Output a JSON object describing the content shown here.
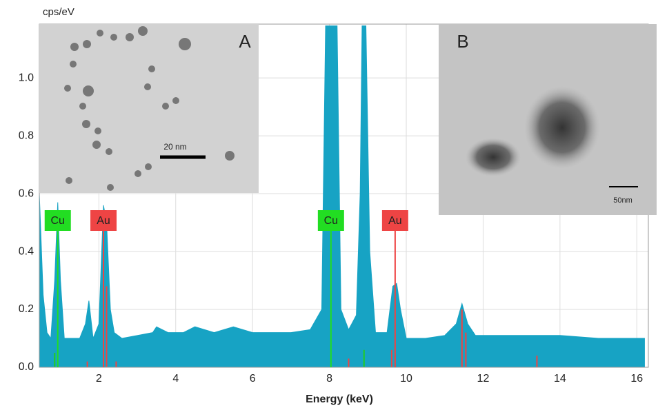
{
  "chart_data": {
    "type": "area",
    "y_label": "cps/eV",
    "x_label": "Energy  (keV)",
    "x": [
      0.45,
      0.55,
      0.65,
      0.75,
      0.85,
      0.93,
      1.0,
      1.1,
      1.3,
      1.5,
      1.65,
      1.74,
      1.85,
      2.0,
      2.12,
      2.2,
      2.3,
      2.4,
      2.6,
      3.0,
      3.4,
      3.5,
      3.8,
      4.2,
      4.5,
      5.0,
      5.5,
      6.0,
      6.5,
      7.0,
      7.5,
      7.8,
      7.9,
      8.04,
      8.2,
      8.3,
      8.5,
      8.7,
      8.8,
      8.85,
      8.95,
      9.05,
      9.2,
      9.5,
      9.65,
      9.75,
      9.85,
      10.0,
      10.5,
      11.0,
      11.3,
      11.45,
      11.6,
      11.8,
      12.5,
      13.0,
      13.5,
      14.0,
      15.0,
      16.2
    ],
    "series": [
      {
        "color": "#17a3c4",
        "values": [
          0.6,
          0.25,
          0.12,
          0.1,
          0.3,
          0.57,
          0.3,
          0.1,
          0.1,
          0.1,
          0.15,
          0.23,
          0.1,
          0.15,
          0.56,
          0.5,
          0.2,
          0.12,
          0.1,
          0.11,
          0.12,
          0.14,
          0.12,
          0.12,
          0.14,
          0.12,
          0.14,
          0.12,
          0.12,
          0.12,
          0.13,
          0.2,
          1.18,
          1.18,
          1.18,
          0.2,
          0.13,
          0.18,
          0.6,
          1.18,
          1.18,
          0.4,
          0.12,
          0.12,
          0.28,
          0.29,
          0.2,
          0.1,
          0.1,
          0.11,
          0.15,
          0.22,
          0.15,
          0.11,
          0.11,
          0.11,
          0.11,
          0.11,
          0.1,
          0.1
        ]
      }
    ],
    "reference_lines": [
      {
        "x": 0.85,
        "value": 0.05,
        "color": "#22cc22"
      },
      {
        "x": 1.7,
        "value": 0.02,
        "color": "#ee4444"
      },
      {
        "x": 2.2,
        "value": 0.28,
        "color": "#ee4444"
      },
      {
        "x": 2.45,
        "value": 0.02,
        "color": "#ee4444"
      },
      {
        "x": 8.5,
        "value": 0.03,
        "color": "#ee4444"
      },
      {
        "x": 8.9,
        "value": 0.06,
        "color": "#22cc22"
      },
      {
        "x": 9.62,
        "value": 0.06,
        "color": "#ee4444"
      },
      {
        "x": 11.45,
        "value": 0.2,
        "color": "#ee4444"
      },
      {
        "x": 11.55,
        "value": 0.12,
        "color": "#ee4444"
      },
      {
        "x": 13.4,
        "value": 0.04,
        "color": "#ee4444"
      }
    ],
    "annotations": [
      {
        "text": "Cu",
        "x": 0.93,
        "color": "#22dd22"
      },
      {
        "text": "Au",
        "x": 2.12,
        "color": "#ee4444"
      },
      {
        "text": "Cu",
        "x": 8.04,
        "color": "#22dd22"
      },
      {
        "text": "Au",
        "x": 9.71,
        "color": "#ee4444"
      }
    ],
    "xlim": [
      0.45,
      16.3
    ],
    "ylim": [
      0,
      1.186
    ],
    "xticks": [
      2,
      4,
      6,
      8,
      10,
      12,
      14,
      16
    ],
    "yticks": [
      {
        "value": 0,
        "label": "0.0"
      },
      0.2,
      0.4,
      0.6,
      0.8,
      {
        "value": 1,
        "label": "1.0"
      }
    ],
    "grid": true,
    "insets": [
      {
        "label": "A",
        "scale_bar": "20 nm"
      },
      {
        "label": "B",
        "scale_bar": "50nm"
      }
    ]
  }
}
